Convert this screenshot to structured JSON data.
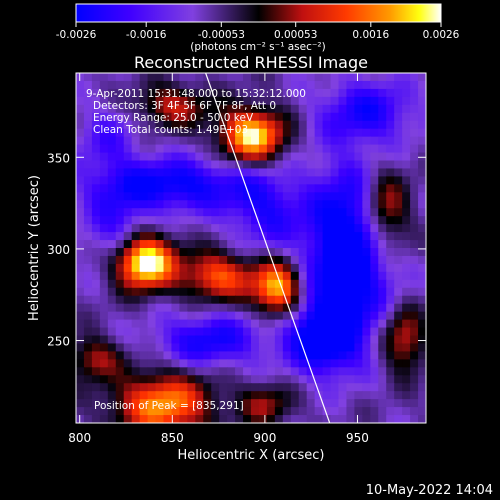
{
  "chart_data": {
    "type": "heatmap",
    "title": "Reconstructed RHESSI Image",
    "xlabel": "Heliocentric X (arcsec)",
    "ylabel": "Heliocentric Y (arcsec)",
    "xlim": [
      798,
      987
    ],
    "ylim": [
      205,
      396
    ],
    "x_ticks": [
      800,
      850,
      900,
      950
    ],
    "y_ticks": [
      250,
      300,
      350
    ],
    "x_tick_labels": [
      "800",
      "850",
      "900",
      "950"
    ],
    "y_tick_labels": [
      "250",
      "300",
      "350"
    ],
    "colorbar": {
      "range": [
        -0.0026,
        0.0026
      ],
      "ticks": [
        -0.0026,
        -0.0016,
        -0.00053,
        0.00053,
        0.0016,
        0.0026
      ],
      "tick_labels": [
        "-0.0026",
        "-0.0016",
        "-0.00053",
        "0.00053",
        "0.0016",
        "0.0026"
      ],
      "unit_label": "(photons cm⁻² s⁻¹ asec⁻²)",
      "colors": [
        "#0000ff",
        "#5a00ff",
        "#7a3df0",
        "#000000",
        "#b01010",
        "#ff3000",
        "#ff9000",
        "#ffff00",
        "#ffffff"
      ]
    },
    "overlay_text": [
      "9-Apr-2011 15:31:48.000 to 15:32:12.000",
      "Detectors: 3F 4F 5F 6F 7F 8F, Att 0",
      "Energy Range: 25.0 - 50.0 keV",
      "Clean    Total counts: 1.49E+03"
    ],
    "peak_label": "Position of Peak = [835,291]",
    "peak_position": [
      835,
      291
    ],
    "sources": [
      {
        "x": 835,
        "y": 293,
        "sx": 11,
        "sy": 10,
        "amp": 2.8
      },
      {
        "x": 875,
        "y": 285,
        "sx": 14,
        "sy": 9,
        "amp": 1.6
      },
      {
        "x": 907,
        "y": 278,
        "sx": 9,
        "sy": 10,
        "amp": 2.1
      },
      {
        "x": 893,
        "y": 362,
        "sx": 12,
        "sy": 10,
        "amp": 2.3
      },
      {
        "x": 850,
        "y": 378,
        "sx": 14,
        "sy": 8,
        "amp": 1.1
      },
      {
        "x": 845,
        "y": 215,
        "sx": 18,
        "sy": 12,
        "amp": 1.9
      },
      {
        "x": 808,
        "y": 240,
        "sx": 10,
        "sy": 8,
        "amp": 1.0
      },
      {
        "x": 965,
        "y": 320,
        "sx": 9,
        "sy": 16,
        "amp": 1.4
      },
      {
        "x": 975,
        "y": 250,
        "sx": 8,
        "sy": 12,
        "amp": 1.2
      },
      {
        "x": 900,
        "y": 215,
        "sx": 10,
        "sy": 8,
        "amp": 0.9
      },
      {
        "x": 850,
        "y": 335,
        "sx": 30,
        "sy": 10,
        "amp": -1.3
      },
      {
        "x": 900,
        "y": 320,
        "sx": 14,
        "sy": 14,
        "amp": -0.9
      },
      {
        "x": 945,
        "y": 300,
        "sx": 16,
        "sy": 30,
        "amp": -1.8
      },
      {
        "x": 932,
        "y": 252,
        "sx": 14,
        "sy": 14,
        "amp": -1.6
      },
      {
        "x": 870,
        "y": 250,
        "sx": 20,
        "sy": 10,
        "amp": -1.1
      },
      {
        "x": 820,
        "y": 310,
        "sx": 12,
        "sy": 14,
        "amp": -0.8
      },
      {
        "x": 955,
        "y": 375,
        "sx": 18,
        "sy": 12,
        "amp": -1.0
      },
      {
        "x": 815,
        "y": 360,
        "sx": 12,
        "sy": 14,
        "amp": -0.6
      }
    ],
    "limb_line": [
      [
        868,
        396
      ],
      [
        935,
        205
      ]
    ],
    "timestamp": "10-May-2022 14:04"
  }
}
